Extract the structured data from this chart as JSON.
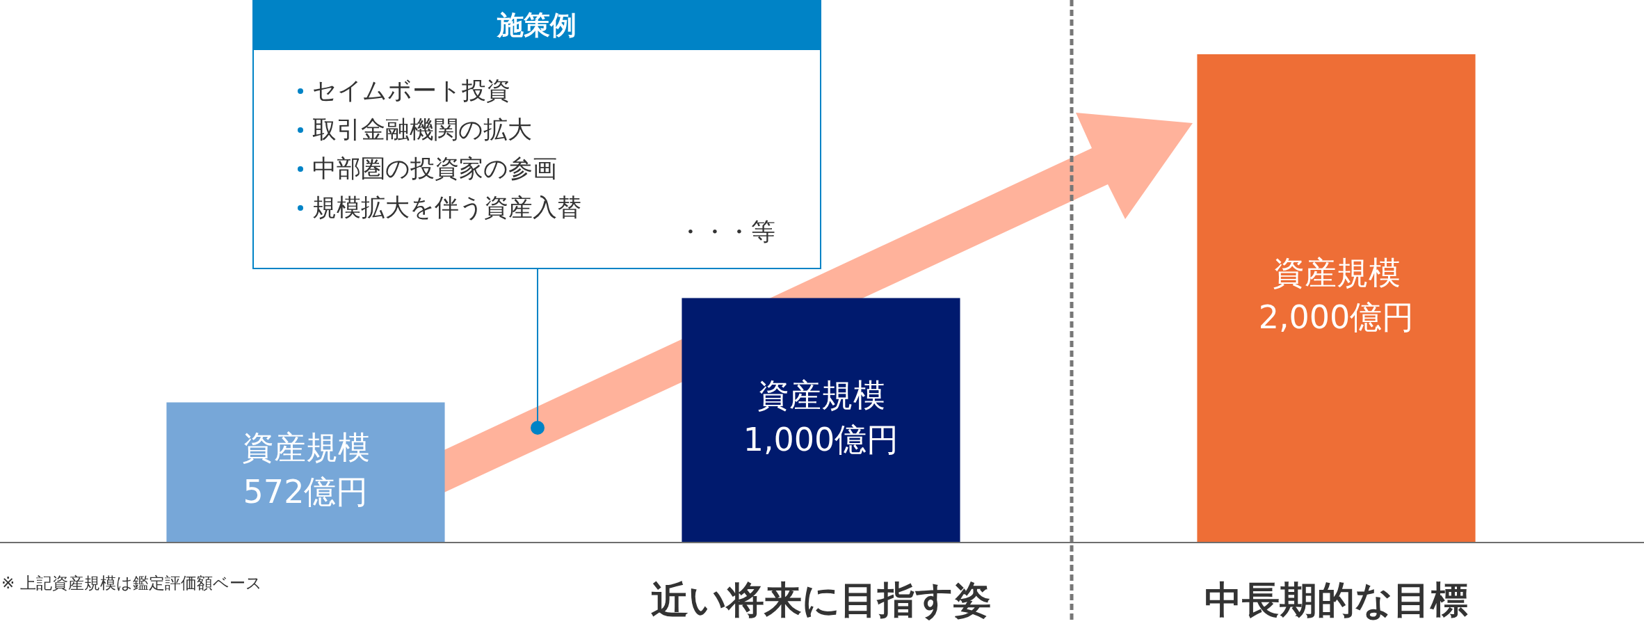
{
  "chart_data": {
    "type": "bar",
    "categories": [
      null,
      "近い将来に目指す姿",
      "中長期的な目標"
    ],
    "values": [
      572,
      1000,
      2000
    ],
    "colors": [
      "#77a7d8",
      "#001a6e",
      "#ee6e36"
    ],
    "value_labels": [
      "資産規模\n572億円",
      "資産規模\n1,000億円",
      "資産規模\n2,000億円"
    ],
    "annotations": [
      "施策例",
      "セイムボート投資",
      "取引金融機関の拡大",
      "中部圏の投資家の参画",
      "規模拡大を伴う資産入替",
      "・・・等",
      "※ 上記資産規模は鑑定評価額ベース"
    ],
    "tick_labels": "x",
    "legend": false,
    "grid": false
  }
}
